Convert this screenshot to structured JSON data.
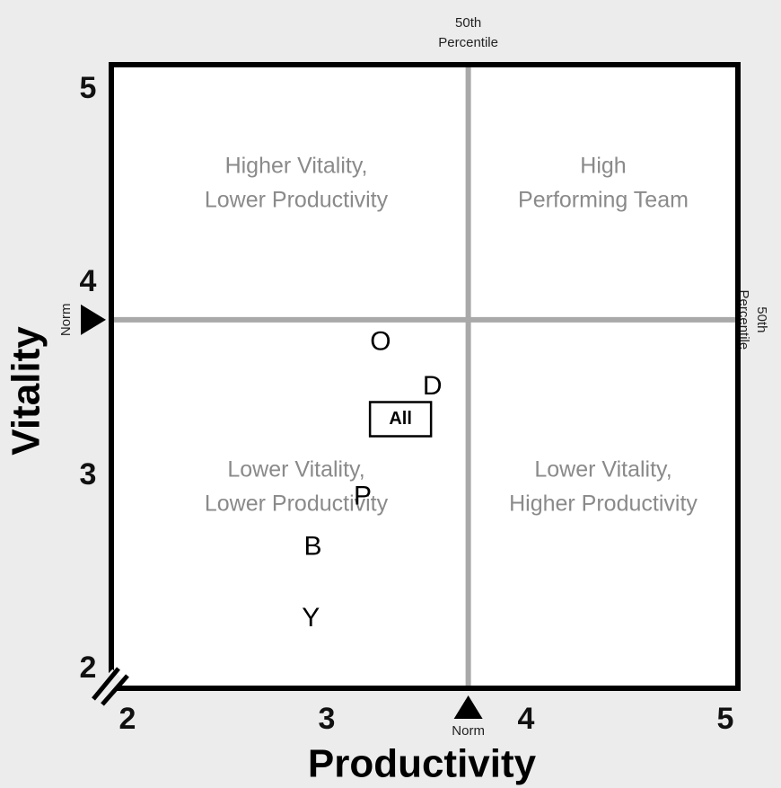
{
  "chart_data": {
    "type": "scatter",
    "xlabel": "Productivity",
    "ylabel": "Vitality",
    "xlim": [
      2,
      5
    ],
    "ylim": [
      2,
      5
    ],
    "xticks": [
      2,
      3,
      4,
      5
    ],
    "yticks": [
      2,
      3,
      4,
      5
    ],
    "points": [
      {
        "label": "O",
        "x": 3.27,
        "y": 3.7
      },
      {
        "label": "D",
        "x": 3.53,
        "y": 3.47
      },
      {
        "label": "All",
        "x": 3.37,
        "y": 3.3,
        "boxed": true
      },
      {
        "label": "P",
        "x": 3.18,
        "y": 2.9
      },
      {
        "label": "B",
        "x": 2.93,
        "y": 2.64
      },
      {
        "label": "Y",
        "x": 2.92,
        "y": 2.27
      }
    ],
    "reference_lines": [
      {
        "axis": "x",
        "value": 3.71,
        "label": [
          "50th",
          "Percentile"
        ],
        "marker_label": "Norm"
      },
      {
        "axis": "y",
        "value": 3.81,
        "label": [
          "50th",
          "Percentile"
        ],
        "marker_label": "Norm"
      }
    ],
    "quadrants": [
      {
        "position": "top-left",
        "lines": [
          "Higher Vitality,",
          "Lower Productivity"
        ]
      },
      {
        "position": "top-right",
        "lines": [
          "High",
          "Performing Team"
        ]
      },
      {
        "position": "bottom-left",
        "lines": [
          "Lower Vitality,",
          "Lower Productivity"
        ]
      },
      {
        "position": "bottom-right",
        "lines": [
          "Lower Vitality,",
          "Higher Productivity"
        ]
      }
    ]
  }
}
